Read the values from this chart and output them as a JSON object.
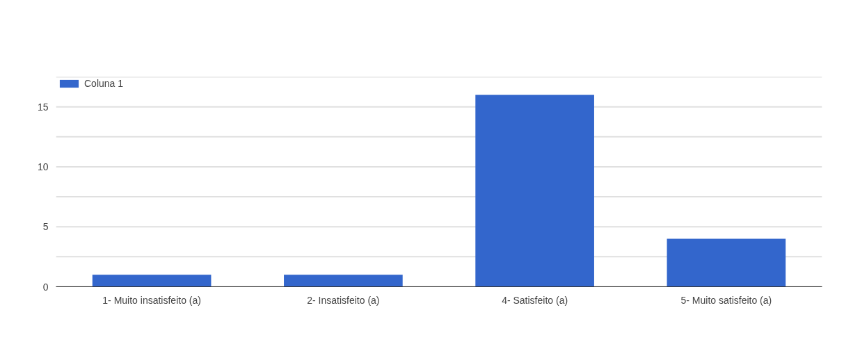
{
  "chart_data": {
    "type": "bar",
    "categories": [
      "1- Muito insatisfeito (a)",
      "2- Insatisfeito (a)",
      "4- Satisfeito (a)",
      "5- Muito satisfeito (a)"
    ],
    "series": [
      {
        "name": "Coluna 1",
        "color": "#3366cc",
        "values": [
          1,
          1,
          16,
          4
        ]
      }
    ],
    "ylim": [
      0,
      17.5
    ],
    "yticks": [
      0,
      {
        "value": 2.5,
        "label": null
      },
      5,
      {
        "value": 7.5,
        "label": null
      },
      10,
      {
        "value": 12.5,
        "label": null
      },
      15,
      {
        "value": 17.5,
        "label": null
      }
    ],
    "grid": "y",
    "legend": "top left"
  }
}
